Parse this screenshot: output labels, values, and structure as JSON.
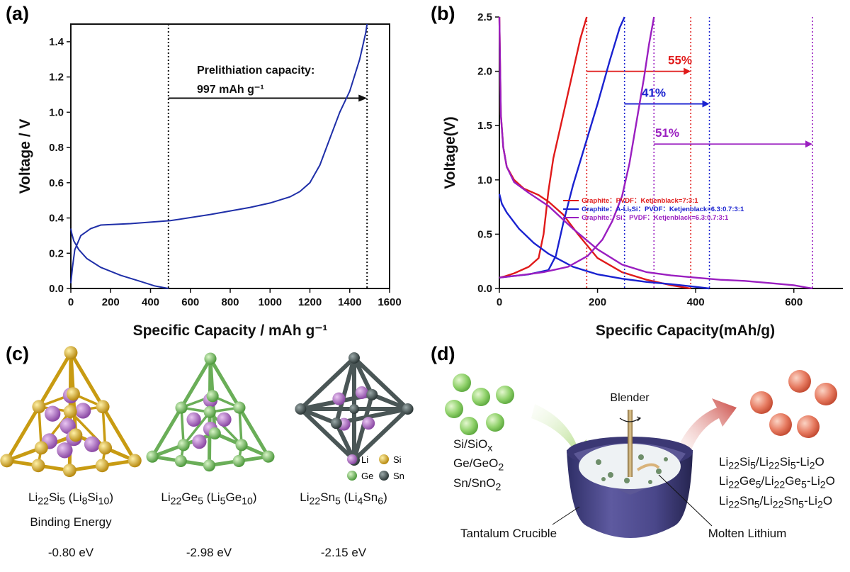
{
  "panels": {
    "a": "(a)",
    "b": "(b)",
    "c": "(c)",
    "d": "(d)"
  },
  "chart_data": [
    {
      "type": "line",
      "panel": "(a)",
      "xlabel": "Specific Capacity / mAh g⁻¹",
      "ylabel": "Voltage / V",
      "xlim": [
        0,
        1600
      ],
      "ylim": [
        0,
        1.5
      ],
      "xticks": [
        "0",
        "200",
        "400",
        "600",
        "800",
        "1000",
        "1200",
        "1400",
        "1600"
      ],
      "yticks": [
        "0.0",
        "0.2",
        "0.4",
        "0.6",
        "0.8",
        "1.0",
        "1.2",
        "1.4"
      ],
      "annotation_line1": "Prelithiation capacity:",
      "annotation_line2": "997 mAh g⁻¹",
      "markers_x": [
        490,
        1487
      ],
      "color": "#1f2fa8",
      "series": [
        {
          "x": [
            0,
            5,
            15,
            40,
            80,
            150,
            250,
            350,
            420,
            470,
            490
          ],
          "y": [
            0.34,
            0.31,
            0.27,
            0.22,
            0.17,
            0.12,
            0.075,
            0.04,
            0.015,
            0.004,
            0.0
          ]
        },
        {
          "x": [
            0,
            8,
            20,
            50,
            100,
            150,
            300,
            500,
            700,
            900,
            1000,
            1100,
            1150,
            1200,
            1250,
            1300,
            1350,
            1400,
            1450,
            1480,
            1487
          ],
          "y": [
            0.03,
            0.12,
            0.22,
            0.3,
            0.34,
            0.36,
            0.368,
            0.385,
            0.42,
            0.46,
            0.485,
            0.52,
            0.55,
            0.6,
            0.7,
            0.85,
            1.0,
            1.12,
            1.3,
            1.45,
            1.5
          ]
        }
      ]
    },
    {
      "type": "line",
      "panel": "(b)",
      "xlabel": "Specific Capacity(mAh/g)",
      "ylabel": "Voltage(V)",
      "xlim": [
        0,
        700
      ],
      "ylim": [
        0,
        2.5
      ],
      "xticks": [
        "0",
        "200",
        "400",
        "600"
      ],
      "yticks": [
        "0.0",
        "0.5",
        "1.0",
        "1.5",
        "2.0",
        "2.5"
      ],
      "legend": [
        "Graphite：PVDF：Ketjenblack=7:3:1",
        "Graphite：A-LiₓSi：PVDF：Ketjenblack=6.3:0.7:3:1",
        "Graphite：Si：PVDF：Ketjenblack=6.3:0.7:3:1"
      ],
      "percent_labels": [
        "55%",
        "41%",
        "51%"
      ],
      "series": [
        {
          "color": "#e01a1a",
          "discharge": {
            "x": [
              0,
              3,
              8,
              15,
              30,
              50,
              80,
              100,
              130,
              160,
              200,
              250,
              300,
              350,
              390
            ],
            "y": [
              2.5,
              1.6,
              1.3,
              1.12,
              1.0,
              0.92,
              0.86,
              0.8,
              0.68,
              0.5,
              0.28,
              0.15,
              0.08,
              0.03,
              0.0
            ]
          },
          "charge": {
            "x": [
              0,
              10,
              30,
              60,
              80,
              90,
              100,
              110,
              130,
              150,
              165,
              178
            ],
            "y": [
              0.1,
              0.11,
              0.14,
              0.2,
              0.28,
              0.5,
              0.9,
              1.2,
              1.6,
              2.0,
              2.3,
              2.5
            ]
          },
          "vlines": [
            178,
            390
          ],
          "arrow": {
            "y": 2.0,
            "x0": 178,
            "x1": 390
          }
        },
        {
          "color": "#1a22d0",
          "discharge": {
            "x": [
              0,
              5,
              15,
              40,
              70,
              100,
              150,
              200,
              250,
              300,
              350,
              400,
              428
            ],
            "y": [
              0.87,
              0.78,
              0.7,
              0.55,
              0.42,
              0.32,
              0.2,
              0.13,
              0.09,
              0.06,
              0.04,
              0.015,
              0.0
            ]
          },
          "charge": {
            "x": [
              0,
              20,
              60,
              100,
              115,
              130,
              150,
              170,
              200,
              225,
              245,
              255
            ],
            "y": [
              0.1,
              0.11,
              0.13,
              0.17,
              0.3,
              0.6,
              0.95,
              1.25,
              1.7,
              2.1,
              2.4,
              2.5
            ]
          },
          "vlines": [
            255,
            428
          ],
          "arrow": {
            "y": 1.7,
            "x0": 255,
            "x1": 428
          }
        },
        {
          "color": "#9a1ec0",
          "discharge": {
            "x": [
              0,
              3,
              8,
              15,
              30,
              60,
              100,
              150,
              200,
              250,
              300,
              350,
              400,
              450,
              500,
              550,
              600,
              625,
              638
            ],
            "y": [
              2.5,
              1.6,
              1.3,
              1.12,
              0.98,
              0.88,
              0.76,
              0.55,
              0.36,
              0.22,
              0.15,
              0.12,
              0.1,
              0.08,
              0.07,
              0.05,
              0.03,
              0.01,
              0.0
            ]
          },
          "charge": {
            "x": [
              0,
              40,
              90,
              140,
              180,
              210,
              230,
              250,
              265,
              280,
              295,
              305,
              315
            ],
            "y": [
              0.1,
              0.12,
              0.15,
              0.2,
              0.3,
              0.45,
              0.62,
              0.85,
              1.15,
              1.55,
              1.95,
              2.25,
              2.5
            ]
          },
          "vlines": [
            315,
            638
          ],
          "arrow": {
            "y": 1.33,
            "x0": 315,
            "x1": 638
          }
        }
      ]
    }
  ],
  "panel_c": {
    "legend": {
      "li": "Li",
      "si": "Si",
      "ge": "Ge",
      "sn": "Sn"
    },
    "colors": {
      "li": "#b06cc4",
      "si": "#e2b526",
      "ge": "#7ec46a",
      "sn": "#4a5656"
    },
    "clusters": [
      {
        "name_html": "Li<sub>22</sub>Si<sub>5</sub> (Li<sub>8</sub>Si<sub>10</sub>)",
        "energy": "-0.80 eV"
      },
      {
        "name_html": "Li<sub>22</sub>Ge<sub>5</sub> (Li<sub>5</sub>Ge<sub>10</sub>)",
        "energy": "-2.98 eV"
      },
      {
        "name_html": "Li<sub>22</sub>Sn<sub>5</sub> (Li<sub>4</sub>Sn<sub>6</sub>)",
        "energy": "-2.15 eV"
      }
    ],
    "binding_label": "Binding Energy"
  },
  "panel_d": {
    "blender": "Blender",
    "crucible": "Tantalum Crucible",
    "molten": "Molten Lithium",
    "inputs_html": [
      "Si/SiO<sub>x</sub>",
      "Ge/GeO<sub>2</sub>",
      "Sn/SnO<sub>2</sub>"
    ],
    "outputs_html": [
      "Li<sub>22</sub>Si<sub>5</sub>/Li<sub>22</sub>Si<sub>5</sub>-Li<sub>2</sub>O",
      "Li<sub>22</sub>Ge<sub>5</sub>/Li<sub>22</sub>Ge<sub>5</sub>-Li<sub>2</sub>O",
      "Li<sub>22</sub>Sn<sub>5</sub>/Li<sub>22</sub>Sn<sub>5</sub>-Li<sub>2</sub>O"
    ]
  }
}
